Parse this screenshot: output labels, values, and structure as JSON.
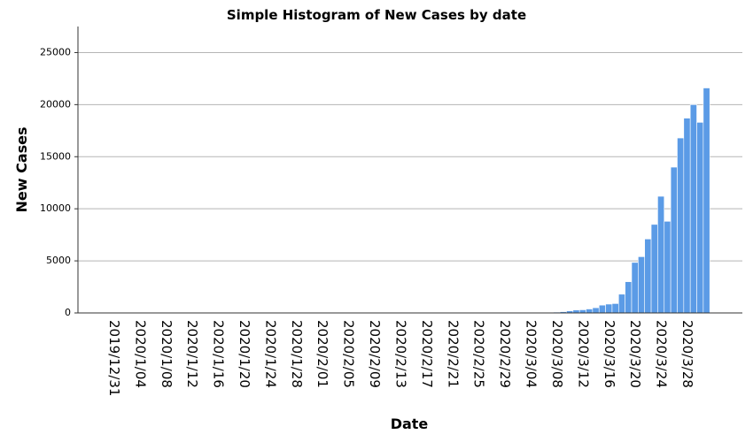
{
  "chart_data": {
    "type": "bar",
    "title": "Simple Histogram of New Cases by date",
    "x_label": "Date",
    "y_label": "New Cases",
    "color": "#5b9be6",
    "grid": true,
    "ylim": [
      0,
      27500
    ],
    "yticks": [
      0,
      5000,
      10000,
      15000,
      20000,
      25000
    ],
    "categories": [
      "2019/12/31",
      null,
      null,
      null,
      "2020/1/04",
      null,
      null,
      null,
      "2020/1/08",
      null,
      null,
      null,
      "2020/1/12",
      null,
      null,
      null,
      "2020/1/16",
      null,
      null,
      null,
      "2020/1/20",
      null,
      null,
      null,
      "2020/1/24",
      null,
      null,
      null,
      "2020/1/28",
      null,
      null,
      null,
      "2020/2/01",
      null,
      null,
      null,
      "2020/2/05",
      null,
      null,
      null,
      "2020/2/09",
      null,
      null,
      null,
      "2020/2/13",
      null,
      null,
      null,
      "2020/2/17",
      null,
      null,
      null,
      "2020/2/21",
      null,
      null,
      null,
      "2020/2/25",
      null,
      null,
      null,
      "2020/2/29",
      null,
      null,
      null,
      "2020/3/04",
      null,
      null,
      null,
      "2020/3/08",
      null,
      null,
      null,
      "2020/3/12",
      null,
      null,
      null,
      "2020/3/16",
      null,
      null,
      null,
      "2020/3/20",
      null,
      null,
      null,
      "2020/3/24",
      null,
      null,
      null,
      "2020/3/28",
      null,
      null,
      null
    ],
    "values": [
      0,
      0,
      0,
      0,
      0,
      0,
      0,
      0,
      0,
      0,
      0,
      0,
      0,
      0,
      0,
      0,
      0,
      0,
      0,
      0,
      0,
      0,
      0,
      0,
      0,
      0,
      0,
      0,
      0,
      0,
      0,
      0,
      0,
      0,
      0,
      0,
      0,
      0,
      0,
      0,
      0,
      0,
      0,
      0,
      0,
      0,
      0,
      0,
      0,
      0,
      0,
      0,
      0,
      0,
      0,
      0,
      0,
      0,
      0,
      0,
      5,
      10,
      15,
      20,
      25,
      30,
      40,
      60,
      80,
      120,
      200,
      280,
      300,
      380,
      500,
      750,
      850,
      900,
      1800,
      3000,
      4850,
      5400,
      7100,
      8500,
      11200,
      8800,
      14000,
      16800,
      18700,
      20000,
      18300,
      21600
    ]
  }
}
